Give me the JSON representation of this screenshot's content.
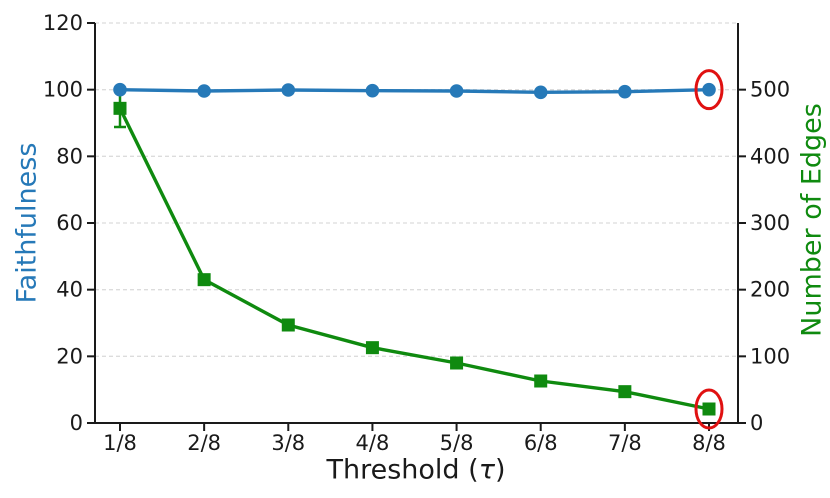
{
  "chart_data": {
    "type": "line",
    "title": "",
    "x_categories": [
      "1/8",
      "2/8",
      "3/8",
      "4/8",
      "5/8",
      "6/8",
      "7/8",
      "8/8"
    ],
    "xlabel": "Threshold (τ)",
    "xlabel_parts": {
      "prefix": "Threshold (",
      "symbol": "τ",
      "suffix": ")"
    },
    "left_axis": {
      "label": "Faithfulness",
      "color": "#2679b8",
      "min": 0,
      "max": 120,
      "ticks": [
        0,
        20,
        40,
        60,
        80,
        100,
        120
      ]
    },
    "right_axis": {
      "label": "Number of Edges",
      "color": "#0f8a0f",
      "min": 0,
      "max": 600,
      "ticks": [
        0,
        100,
        200,
        300,
        400,
        500
      ]
    },
    "grid": {
      "show": true,
      "style": "dashed",
      "color": "#dcdcdc",
      "orientation": "horizontal"
    },
    "series": [
      {
        "name": "Number of Edges",
        "axis": "right",
        "color": "#0f8a0f",
        "marker": "square",
        "values": [
          472,
          215,
          147,
          113,
          90,
          63,
          47,
          21
        ],
        "error_bars": [
          {
            "index": 0,
            "low": 444,
            "high": 500
          }
        ]
      },
      {
        "name": "Faithfulness",
        "axis": "left",
        "color": "#2679b8",
        "marker": "circle",
        "values": [
          100,
          99.6,
          99.9,
          99.7,
          99.6,
          99.2,
          99.4,
          100
        ],
        "error_bars": []
      }
    ],
    "annotations": [
      {
        "type": "ellipse",
        "series": "Faithfulness",
        "x": "8/8",
        "color": "#e01111"
      },
      {
        "type": "ellipse",
        "series": "Number of Edges",
        "x": "8/8",
        "color": "#e01111"
      }
    ]
  }
}
